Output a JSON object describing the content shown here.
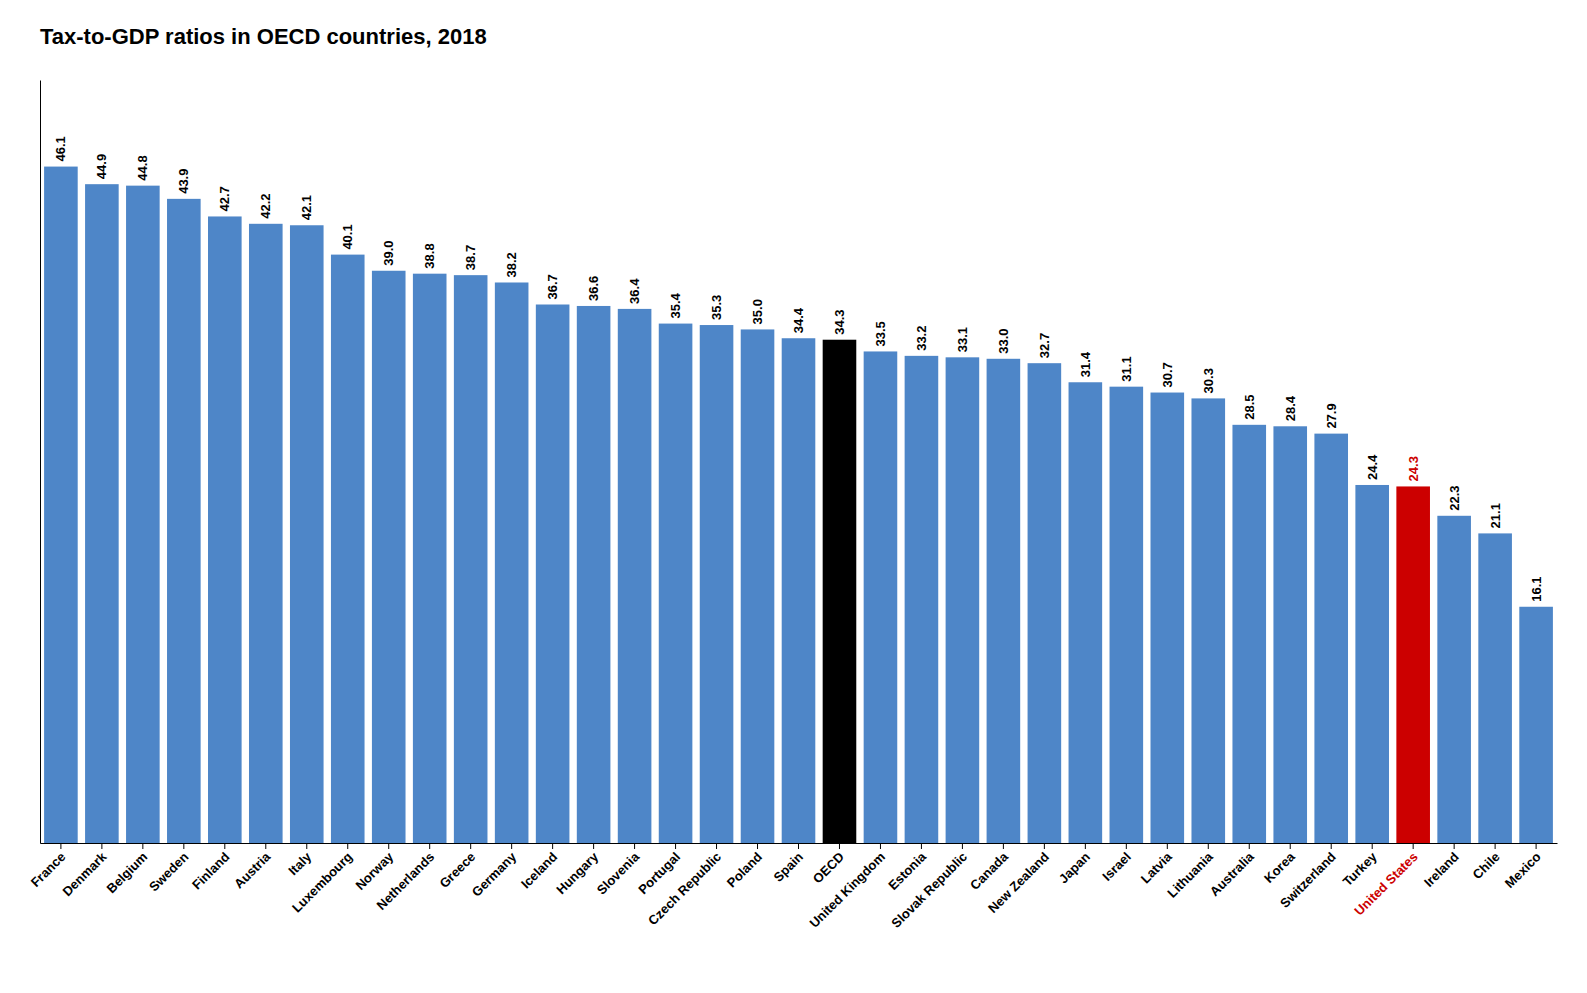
{
  "chart_data": {
    "type": "bar",
    "title": "Tax-to-GDP ratios in OECD countries, 2018",
    "categories": [
      "France",
      "Denmark",
      "Belgium",
      "Sweden",
      "Finland",
      "Austria",
      "Italy",
      "Luxembourg",
      "Norway",
      "Netherlands",
      "Greece",
      "Germany",
      "Iceland",
      "Hungary",
      "Slovenia",
      "Portugal",
      "Czech Republic",
      "Poland",
      "Spain",
      "OECD",
      "United Kingdom",
      "Estonia",
      "Slovak Republic",
      "Canada",
      "New Zealand",
      "Japan",
      "Israel",
      "Latvia",
      "Lithuania",
      "Australia",
      "Korea",
      "Switzerland",
      "Turkey",
      "United States",
      "Ireland",
      "Chile",
      "Mexico"
    ],
    "values": [
      46.1,
      44.9,
      44.8,
      43.9,
      42.7,
      42.2,
      42.1,
      40.1,
      39.0,
      38.8,
      38.7,
      38.2,
      36.7,
      36.6,
      36.4,
      35.4,
      35.3,
      35.0,
      34.4,
      34.3,
      33.5,
      33.2,
      33.1,
      33.0,
      32.7,
      31.4,
      31.1,
      30.7,
      30.3,
      28.5,
      28.4,
      27.9,
      24.4,
      24.3,
      22.3,
      21.1,
      16.1
    ],
    "value_labels": [
      "46.1",
      "44.9",
      "44.8",
      "43.9",
      "42.7",
      "42.2",
      "42.1",
      "40.1",
      "39.0",
      "38.8",
      "38.7",
      "38.2",
      "36.7",
      "36.6",
      "36.4",
      "35.4",
      "35.3",
      "35.0",
      "34.4",
      "34.3",
      "33.5",
      "33.2",
      "33.1",
      "33.0",
      "32.7",
      "31.4",
      "31.1",
      "30.7",
      "30.3",
      "28.5",
      "28.4",
      "27.9",
      "24.4",
      "24.3",
      "22.3",
      "21.1",
      "16.1"
    ],
    "colors": [
      "#4e86c8",
      "#4e86c8",
      "#4e86c8",
      "#4e86c8",
      "#4e86c8",
      "#4e86c8",
      "#4e86c8",
      "#4e86c8",
      "#4e86c8",
      "#4e86c8",
      "#4e86c8",
      "#4e86c8",
      "#4e86c8",
      "#4e86c8",
      "#4e86c8",
      "#4e86c8",
      "#4e86c8",
      "#4e86c8",
      "#4e86c8",
      "#000000",
      "#4e86c8",
      "#4e86c8",
      "#4e86c8",
      "#4e86c8",
      "#4e86c8",
      "#4e86c8",
      "#4e86c8",
      "#4e86c8",
      "#4e86c8",
      "#4e86c8",
      "#4e86c8",
      "#4e86c8",
      "#4e86c8",
      "#cc0000",
      "#4e86c8",
      "#4e86c8",
      "#4e86c8"
    ],
    "ylim": [
      0,
      52
    ],
    "data_labels": true,
    "tick_labels": "x"
  }
}
